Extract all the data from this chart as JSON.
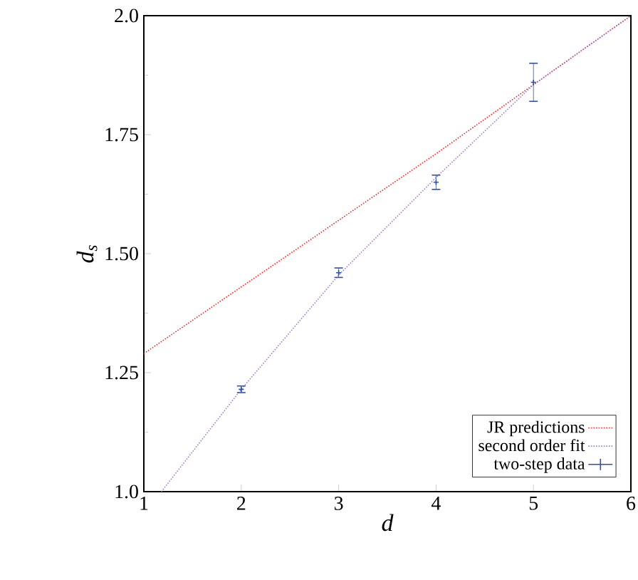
{
  "chart_data": {
    "type": "line",
    "xlabel": "d",
    "ylabel": "d$_{s}$",
    "xlim": [
      1,
      6
    ],
    "ylim": [
      1.0,
      2.0
    ],
    "xticks": [
      1,
      2,
      3,
      4,
      5,
      6
    ],
    "yticks": [
      {
        "value": 1.0,
        "label": "1.0"
      },
      1.25,
      {
        "value": 1.5,
        "label": "1.50"
      },
      1.75,
      {
        "value": 2.0,
        "label": "2.0"
      }
    ],
    "grid": false,
    "legend": "bottom right",
    "series": [
      {
        "name": "JR predictions",
        "line_style": "dotted",
        "color": "#ff2020",
        "x": [
          1,
          2,
          3,
          4,
          5,
          6
        ],
        "values": [
          1.29,
          1.43,
          1.57,
          1.71,
          1.855,
          2.0
        ]
      },
      {
        "name": "second order fit",
        "line_style": "dotted",
        "color": "#9a80d0",
        "x": [
          1.18,
          2,
          3,
          4,
          5,
          6
        ],
        "values": [
          1.0,
          1.215,
          1.455,
          1.66,
          1.855,
          2.0
        ]
      },
      {
        "name": "two-step data",
        "type": "scatter",
        "marker": "cross",
        "color": "#3050b0",
        "x": [
          2,
          3,
          4,
          5
        ],
        "values": [
          1.215,
          1.46,
          1.65,
          1.86
        ],
        "errors": [
          0.007,
          0.01,
          0.015,
          0.04
        ]
      }
    ]
  }
}
